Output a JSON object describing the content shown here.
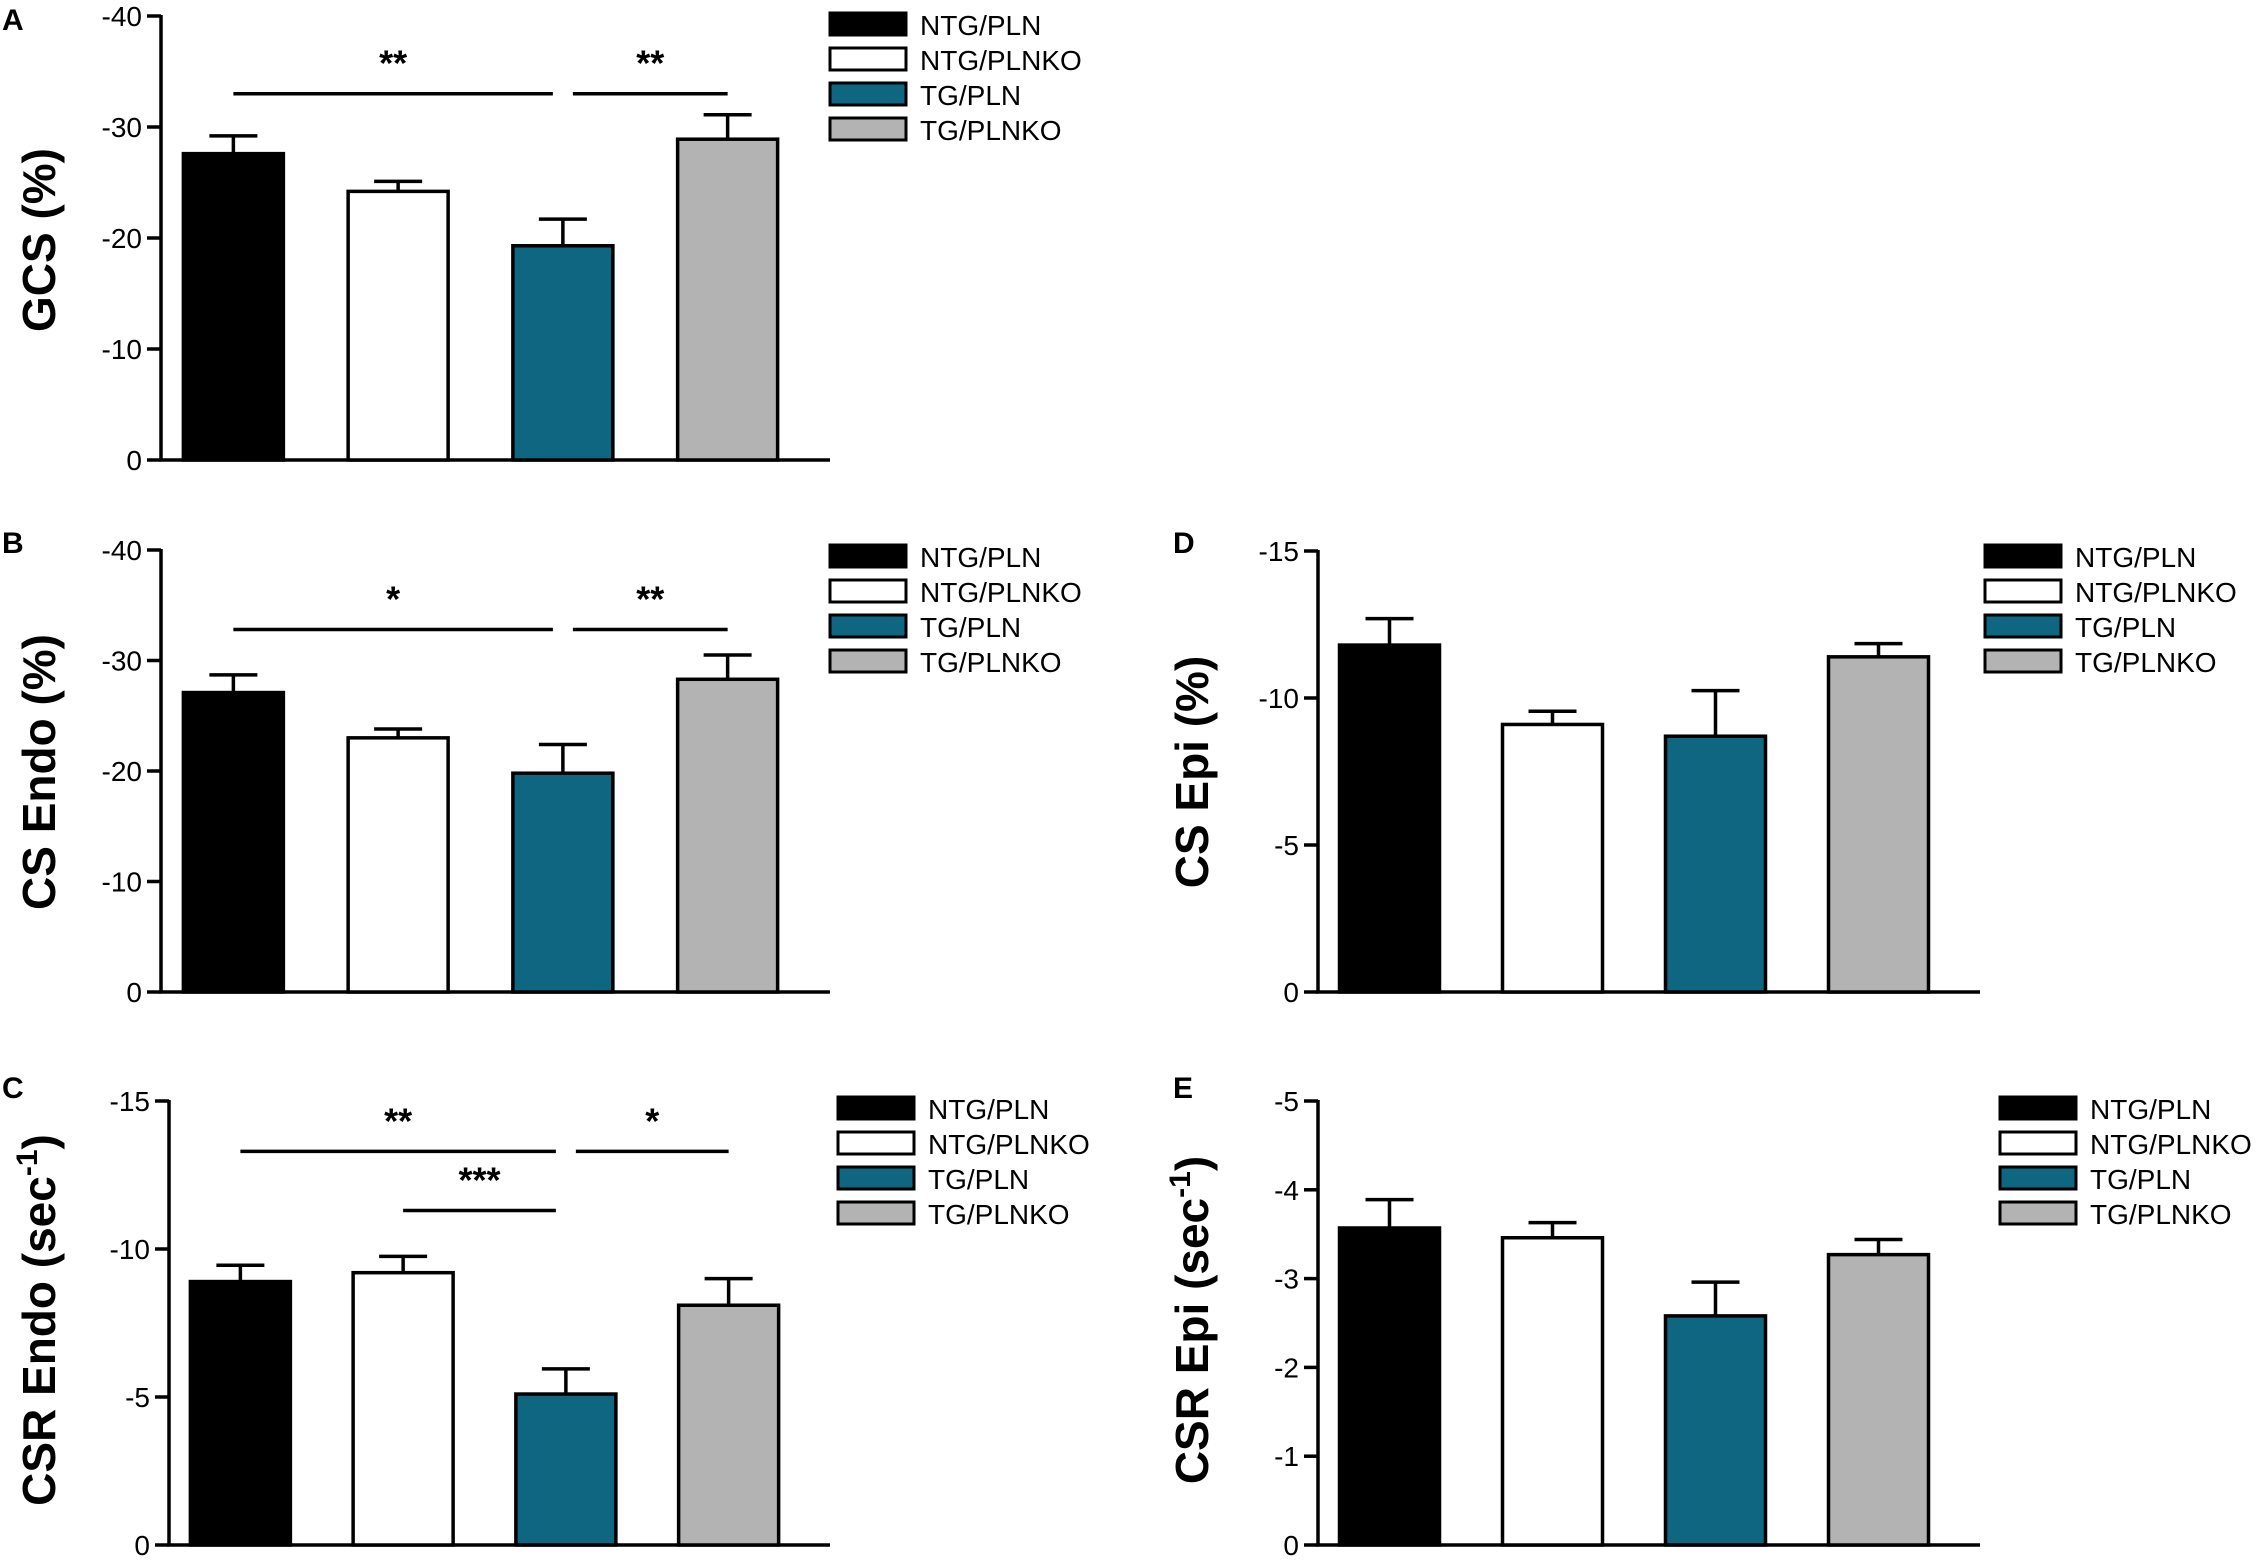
{
  "colors": {
    "NTG/PLN": "#000000",
    "NTG/PLNKO": "#ffffff",
    "TG/PLN": "#0e6680",
    "TG/PLNKO": "#b3b3b3"
  },
  "chart_data": [
    {
      "panel": "A",
      "type": "bar",
      "ylabel": "GCS (%)",
      "categories": [
        "NTG/PLN",
        "NTG/PLNKO",
        "TG/PLN",
        "TG/PLNKO"
      ],
      "values": [
        -27.6,
        -24.2,
        -19.3,
        -28.9
      ],
      "errors": [
        1.6,
        0.9,
        2.4,
        2.2
      ],
      "ylim": [
        0,
        -40
      ],
      "yticks": [
        0,
        -10,
        -20,
        -30,
        -40
      ],
      "ytick_labels": [
        "0",
        "-10",
        "-20",
        "-30",
        "-40"
      ],
      "legend": [
        "NTG/PLN",
        "NTG/PLNKO",
        "TG/PLN",
        "TG/PLNKO"
      ],
      "significance": [
        {
          "from": 0,
          "to": 2,
          "label": "**",
          "level": -33.0
        },
        {
          "from": 2,
          "to": 3,
          "label": "**",
          "level": -33.0
        }
      ]
    },
    {
      "panel": "B",
      "type": "bar",
      "ylabel": "CS Endo (%)",
      "categories": [
        "NTG/PLN",
        "NTG/PLNKO",
        "TG/PLN",
        "TG/PLNKO"
      ],
      "values": [
        -27.1,
        -23.0,
        -19.8,
        -28.3
      ],
      "errors": [
        1.6,
        0.8,
        2.6,
        2.2
      ],
      "ylim": [
        0,
        -40
      ],
      "yticks": [
        0,
        -10,
        -20,
        -30,
        -40
      ],
      "ytick_labels": [
        "0",
        "-10",
        "-20",
        "-30",
        "-40"
      ],
      "legend": [
        "NTG/PLN",
        "NTG/PLNKO",
        "TG/PLN",
        "TG/PLNKO"
      ],
      "significance": [
        {
          "from": 0,
          "to": 2,
          "label": "*",
          "level": -32.8
        },
        {
          "from": 2,
          "to": 3,
          "label": "**",
          "level": -32.8
        }
      ]
    },
    {
      "panel": "C",
      "type": "bar",
      "ylabel": "CSR Endo (sec",
      "ylabel_sup": "-1",
      "ylabel_end": ")",
      "categories": [
        "NTG/PLN",
        "NTG/PLNKO",
        "TG/PLN",
        "TG/PLNKO"
      ],
      "values": [
        -8.9,
        -9.2,
        -5.1,
        -8.1
      ],
      "errors": [
        0.55,
        0.55,
        0.85,
        0.9
      ],
      "ylim": [
        0,
        -15
      ],
      "yticks": [
        0,
        -5,
        -10,
        -15
      ],
      "ytick_labels": [
        "0",
        "-5",
        "-10",
        "-15"
      ],
      "legend": [
        "NTG/PLN",
        "NTG/PLNKO",
        "TG/PLN",
        "TG/PLNKO"
      ],
      "significance": [
        {
          "from": 0,
          "to": 2,
          "label": "**",
          "level": -13.3
        },
        {
          "from": 2,
          "to": 3,
          "label": "*",
          "level": -13.3
        },
        {
          "from": 1,
          "to": 2,
          "label": "***",
          "level": -11.3
        }
      ]
    },
    {
      "panel": "D",
      "type": "bar",
      "ylabel": "CS Epi (%)",
      "categories": [
        "NTG/PLN",
        "NTG/PLNKO",
        "TG/PLN",
        "TG/PLNKO"
      ],
      "values": [
        -11.8,
        -9.1,
        -8.7,
        -11.4
      ],
      "errors": [
        0.9,
        0.45,
        1.55,
        0.45
      ],
      "ylim": [
        0,
        -15
      ],
      "yticks": [
        0,
        -5,
        -10,
        -15
      ],
      "ytick_labels": [
        "0",
        "-5",
        "-10",
        "-15"
      ],
      "legend": [
        "NTG/PLN",
        "NTG/PLNKO",
        "TG/PLN",
        "TG/PLNKO"
      ],
      "significance": []
    },
    {
      "panel": "E",
      "type": "bar",
      "ylabel": "CSR Epi (sec",
      "ylabel_sup": "-1",
      "ylabel_end": ")",
      "categories": [
        "NTG/PLN",
        "NTG/PLNKO",
        "TG/PLN",
        "TG/PLNKO"
      ],
      "values": [
        -3.57,
        -3.46,
        -2.58,
        -3.27
      ],
      "errors": [
        0.32,
        0.17,
        0.38,
        0.17
      ],
      "ylim": [
        0,
        -5
      ],
      "yticks": [
        0,
        -1,
        -2,
        -3,
        -4,
        -5
      ],
      "ytick_labels": [
        "0",
        "-1",
        "-2",
        "-3",
        "-4",
        "-5"
      ],
      "legend": [
        "NTG/PLN",
        "NTG/PLNKO",
        "TG/PLN",
        "TG/PLNKO"
      ],
      "significance": []
    }
  ]
}
